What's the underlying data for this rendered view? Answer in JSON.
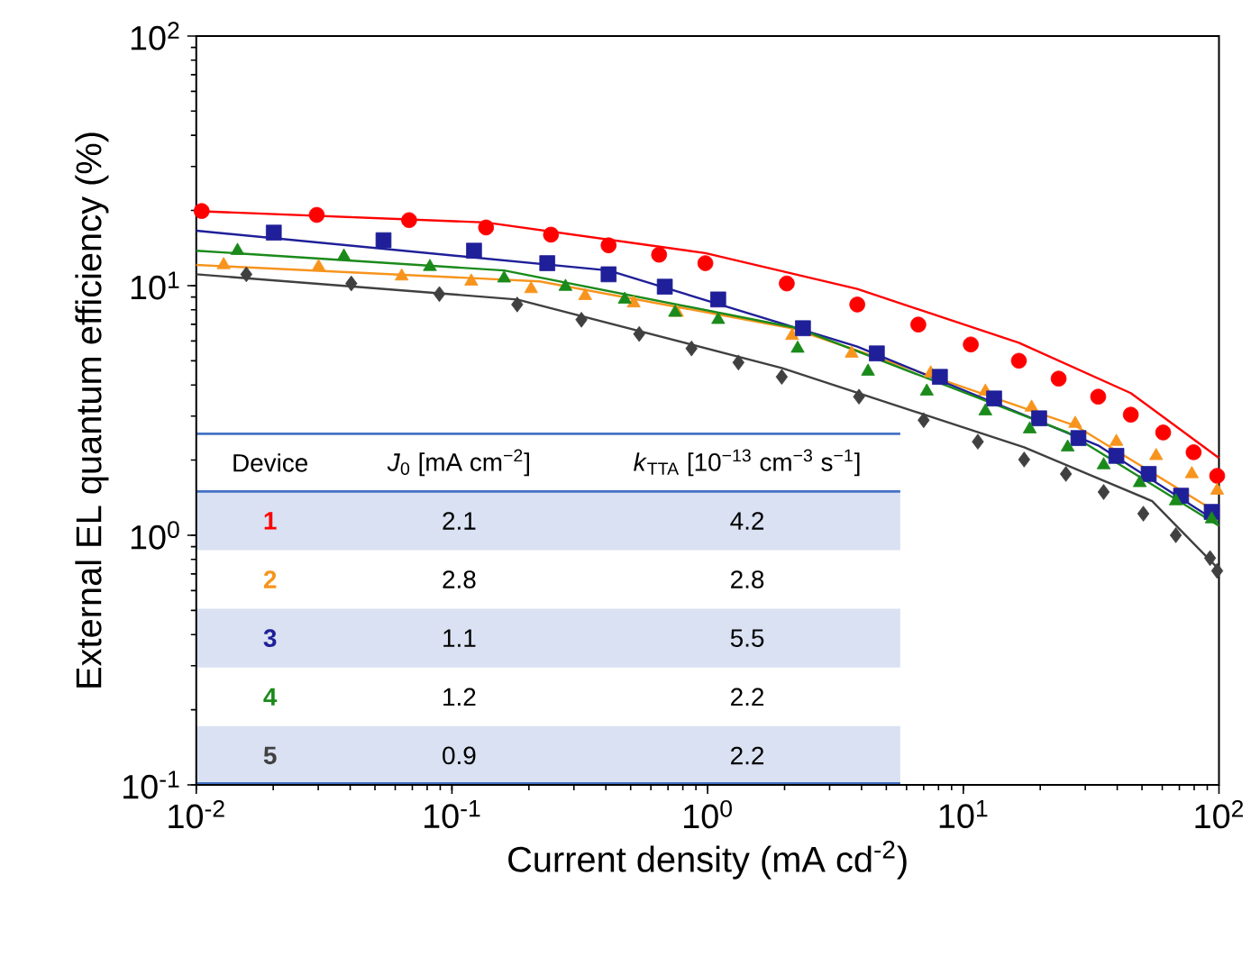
{
  "chart_data": {
    "type": "scatter",
    "log": "xy",
    "xlabel": "Current density (mA cd$^{-2}$)",
    "ylabel": "External EL quantum efficiency (%)",
    "xlim": [
      0.01,
      100
    ],
    "ylim": [
      0.1,
      100
    ],
    "xticks": [
      {
        "value": 0.01,
        "label": "10$^{-2}$"
      },
      {
        "value": 0.1,
        "label": "10$^{-1}$"
      },
      {
        "value": 1,
        "label": "10$^{0}$"
      },
      {
        "value": 10,
        "label": "10$^{1}$"
      },
      {
        "value": 100,
        "label": "10$^{2}$"
      }
    ],
    "yticks": [
      {
        "value": 0.1,
        "label": "10$^{-1}$"
      },
      {
        "value": 1,
        "label": "10$^{0}$"
      },
      {
        "value": 10,
        "label": "10$^{1}$"
      },
      {
        "value": 100,
        "label": "10$^{2}$"
      }
    ],
    "series": [
      {
        "name": "1",
        "color": "#ff0000",
        "marker": "circle",
        "x": [
          0.0105,
          0.0296,
          0.068,
          0.136,
          0.244,
          0.41,
          0.646,
          0.98,
          2.04,
          3.85,
          6.67,
          10.7,
          16.5,
          23.6,
          33.7,
          45.2,
          60.5,
          79.6,
          98.4
        ],
        "values": [
          19.9,
          19.2,
          18.3,
          17.1,
          16.0,
          14.5,
          13.3,
          12.3,
          10.2,
          8.4,
          6.98,
          5.81,
          5.0,
          4.24,
          3.59,
          3.04,
          2.58,
          2.15,
          1.73
        ]
      },
      {
        "name": "2",
        "color": "#f7941d",
        "marker": "triangle",
        "x": [
          0.0128,
          0.0301,
          0.0636,
          0.119,
          0.204,
          0.332,
          0.514,
          0.759,
          2.14,
          3.66,
          7.46,
          12.2,
          18.5,
          27.4,
          39.7,
          56.8,
          78.3,
          98.4
        ],
        "values": [
          12.1,
          11.9,
          10.9,
          10.4,
          9.7,
          9.1,
          8.5,
          7.8,
          6.3,
          5.35,
          4.46,
          3.77,
          3.25,
          2.8,
          2.37,
          2.08,
          1.76,
          1.51
        ]
      },
      {
        "name": "3",
        "color": "#1f1f99",
        "marker": "square",
        "x": [
          0.0201,
          0.054,
          0.122,
          0.236,
          0.41,
          0.68,
          1.1,
          2.36,
          4.59,
          8.1,
          13.2,
          19.8,
          28.2,
          39.7,
          53.1,
          71.1,
          93.7
        ],
        "values": [
          16.3,
          15.2,
          13.8,
          12.3,
          11.1,
          9.9,
          8.8,
          6.75,
          5.35,
          4.31,
          3.53,
          2.94,
          2.45,
          2.08,
          1.76,
          1.44,
          1.24
        ]
      },
      {
        "name": "4",
        "color": "#1a8a1a",
        "marker": "triangle",
        "x": [
          0.0145,
          0.0378,
          0.082,
          0.16,
          0.278,
          0.474,
          0.746,
          1.1,
          2.25,
          4.24,
          7.2,
          12.2,
          18.2,
          25.6,
          35.4,
          49.0,
          67.8,
          93.7
        ],
        "values": [
          13.8,
          13.1,
          11.9,
          10.7,
          9.9,
          8.8,
          7.8,
          7.3,
          5.6,
          4.53,
          3.77,
          3.14,
          2.66,
          2.25,
          1.91,
          1.62,
          1.37,
          1.16
        ]
      },
      {
        "name": "5",
        "color": "#404040",
        "marker": "diamond",
        "x": [
          0.0157,
          0.0404,
          0.0893,
          0.18,
          0.321,
          0.54,
          0.865,
          1.32,
          1.95,
          3.91,
          7.0,
          11.4,
          17.3,
          25.2,
          35.4,
          50.6,
          67.8,
          92.3,
          98.4
        ],
        "values": [
          11.1,
          10.2,
          9.25,
          8.4,
          7.3,
          6.4,
          5.6,
          4.92,
          4.31,
          3.59,
          2.89,
          2.37,
          2.01,
          1.76,
          1.49,
          1.22,
          1.0,
          0.81,
          0.72
        ]
      },
      {
        "color": "#ff0000",
        "type": "line",
        "x": [
          0.01,
          0.136,
          0.98,
          3.85,
          16.5,
          45.2,
          100
        ],
        "values": [
          19.9,
          17.9,
          13.5,
          9.7,
          5.9,
          3.71,
          2.04
        ]
      },
      {
        "color": "#f7941d",
        "type": "line",
        "x": [
          0.01,
          0.22,
          2.14,
          27.4,
          100
        ],
        "values": [
          12.1,
          10.4,
          6.75,
          2.75,
          1.22
        ]
      },
      {
        "color": "#1f1f99",
        "type": "line",
        "x": [
          0.01,
          0.41,
          3.85,
          33.7,
          100
        ],
        "values": [
          16.6,
          11.5,
          5.7,
          2.29,
          1.12
        ]
      },
      {
        "color": "#1a8a1a",
        "type": "line",
        "x": [
          0.01,
          0.16,
          2.25,
          25.6,
          100
        ],
        "values": [
          13.8,
          11.5,
          6.75,
          2.58,
          1.09
        ]
      },
      {
        "color": "#404040",
        "type": "line",
        "x": [
          0.01,
          0.18,
          1.95,
          17.3,
          54.8,
          100
        ],
        "values": [
          11.1,
          8.8,
          4.68,
          2.25,
          1.37,
          0.73
        ]
      }
    ],
    "annotations": [
      "Device",
      "*J*$_{0}$ [mA cm$^{−2}$]",
      "*k*$_{TTA}$ [10$^{−13}$ cm$^{−3}$ s$^{−1}$]",
      "2.1",
      "4.2",
      "2.8",
      "2.8",
      "1.1",
      "5.5",
      "1.2",
      "2.2",
      "0.9",
      "2.2"
    ]
  }
}
